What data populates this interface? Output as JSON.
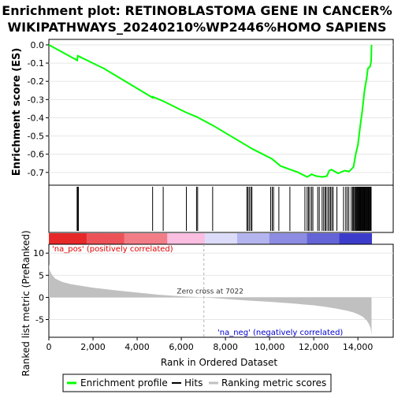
{
  "chart_data": {
    "type": "line",
    "title_line1": "Enrichment plot: RETINOBLASTOMA GENE IN CANCER%",
    "title_line2": "WIKIPATHWAYS_20240210%WP2446%HOMO SAPIENS",
    "es_panel": {
      "ylabel": "Enrichment score (ES)",
      "ylim": [
        -0.77,
        0.03
      ],
      "yticks": [
        0.0,
        -0.1,
        -0.2,
        -0.3,
        -0.4,
        -0.5,
        -0.6,
        -0.7
      ],
      "ytick_labels": [
        "0.0",
        "-0.1",
        "-0.2",
        "-0.3",
        "-0.4",
        "-0.5",
        "-0.6",
        "-0.7"
      ],
      "series_name": "Enrichment profile",
      "color": "#00ff00",
      "x": [
        0,
        1290,
        1300,
        1310,
        2500,
        4700,
        4710,
        5200,
        6200,
        6700,
        7400,
        9000,
        9200,
        10100,
        10500,
        11300,
        11700,
        11900,
        12100,
        12400,
        12600,
        12700,
        12800,
        13100,
        13400,
        13600,
        13800,
        13900,
        14000,
        14100,
        14200,
        14300,
        14400,
        14450,
        14550,
        14600,
        14620
      ],
      "y": [
        0.0,
        -0.085,
        -0.07,
        -0.06,
        -0.13,
        -0.29,
        -0.285,
        -0.31,
        -0.37,
        -0.395,
        -0.44,
        -0.555,
        -0.57,
        -0.625,
        -0.665,
        -0.7,
        -0.725,
        -0.71,
        -0.72,
        -0.725,
        -0.72,
        -0.69,
        -0.685,
        -0.705,
        -0.69,
        -0.695,
        -0.67,
        -0.6,
        -0.55,
        -0.45,
        -0.36,
        -0.25,
        -0.18,
        -0.13,
        -0.12,
        -0.09,
        0.0
      ]
    },
    "hits": {
      "series_name": "Hits",
      "positions": [
        1280,
        1310,
        1340,
        4700,
        5180,
        6230,
        6690,
        6740,
        7420,
        8970,
        9020,
        9080,
        9150,
        9200,
        10050,
        10120,
        10180,
        10420,
        10920,
        11600,
        11700,
        11760,
        11820,
        11900,
        11960,
        12180,
        12250,
        12380,
        12450,
        12520,
        12560,
        12640,
        12700,
        12760,
        12820,
        12880,
        13050,
        13350,
        13450,
        13520,
        13590,
        13700,
        13760,
        13800,
        13850,
        13880,
        13920,
        13950,
        13980,
        14010,
        14040,
        14070,
        14100,
        14130,
        14160,
        14190,
        14220,
        14250,
        14280,
        14310,
        14340,
        14370,
        14400,
        14430,
        14460,
        14490,
        14520,
        14550,
        14580,
        14600
      ]
    },
    "metric_panel": {
      "ylabel": "Ranked list metric (PreRanked)",
      "ylim": [
        -9,
        12
      ],
      "yticks": [
        10,
        5,
        0,
        -5
      ],
      "ytick_labels": [
        "10",
        "5",
        "0",
        "-5"
      ],
      "series_name": "Ranking metric scores",
      "color": "#c0c0c0",
      "x": [
        0,
        50,
        150,
        300,
        600,
        1000,
        2000,
        3000,
        4000,
        5000,
        6000,
        7022,
        8000,
        9000,
        10000,
        11000,
        12000,
        12500,
        13000,
        13500,
        13800,
        14000,
        14200,
        14400,
        14500,
        14580,
        14620
      ],
      "y": [
        7.5,
        6.0,
        5.0,
        4.2,
        3.5,
        3.0,
        2.2,
        1.6,
        1.1,
        0.6,
        0.25,
        0.0,
        -0.35,
        -0.7,
        -1.0,
        -1.35,
        -1.8,
        -2.1,
        -2.5,
        -3.0,
        -3.4,
        -3.8,
        -4.3,
        -5.2,
        -6.0,
        -7.0,
        -8.5
      ],
      "zero_cross_label": "Zero cross at 7022",
      "zero_cross": 7022,
      "pos_label": "'na_pos' (positively correlated)",
      "neg_label": "'na_neg' (negatively correlated)",
      "pos_color": "#e00000",
      "neg_color": "#0000d0"
    },
    "xaxis": {
      "xlabel": "Rank in Ordered Dataset",
      "xlim": [
        0,
        15600
      ],
      "xticks": [
        0,
        2000,
        4000,
        6000,
        8000,
        10000,
        12000,
        14000
      ],
      "xtick_labels": [
        "0",
        "2,000",
        "4,000",
        "6,000",
        "8,000",
        "10,000",
        "12,000",
        "14,000"
      ],
      "n_genes": 14620
    },
    "legend": {
      "position": "bottom",
      "items": [
        {
          "label": "Enrichment profile",
          "color": "#00ff00"
        },
        {
          "label": "Hits",
          "color": "#000000"
        },
        {
          "label": "Ranking metric scores",
          "color": "#c0c0c0"
        }
      ]
    }
  }
}
